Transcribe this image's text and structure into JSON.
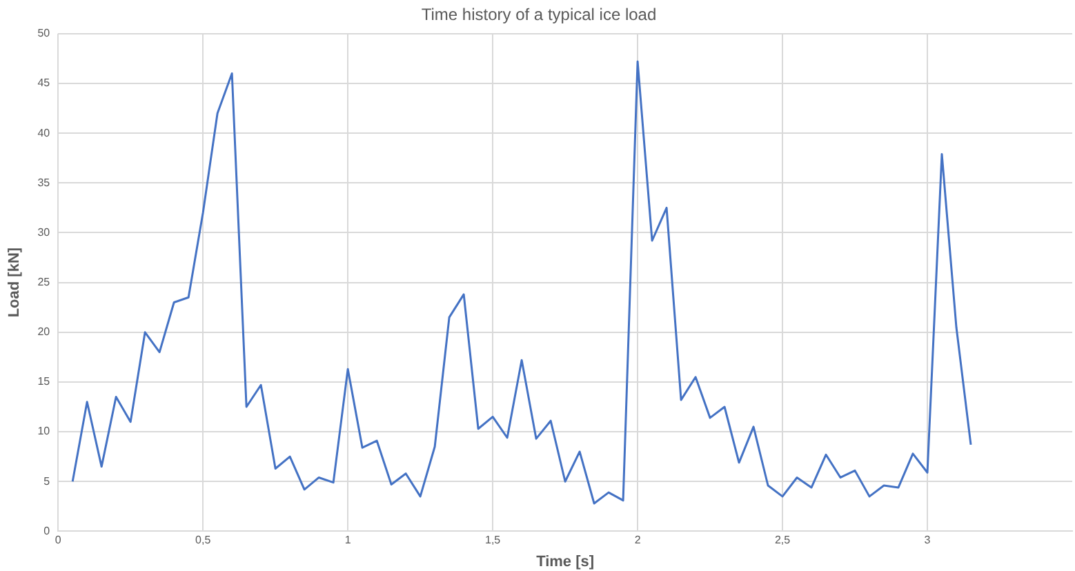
{
  "chart_data": {
    "type": "line",
    "title": "Time history of a typical ice load",
    "xlabel": "Time [s]",
    "ylabel": "Load [kN]",
    "x": [
      0.05,
      0.1,
      0.15,
      0.2,
      0.25,
      0.3,
      0.35,
      0.4,
      0.45,
      0.5,
      0.55,
      0.6,
      0.65,
      0.7,
      0.75,
      0.8,
      0.85,
      0.9,
      0.95,
      1.0,
      1.05,
      1.1,
      1.15,
      1.2,
      1.25,
      1.3,
      1.35,
      1.4,
      1.45,
      1.5,
      1.55,
      1.6,
      1.65,
      1.7,
      1.75,
      1.8,
      1.85,
      1.9,
      1.95,
      2.0,
      2.05,
      2.1,
      2.15,
      2.2,
      2.25,
      2.3,
      2.35,
      2.4,
      2.45,
      2.5,
      2.55,
      2.6,
      2.65,
      2.7,
      2.75,
      2.8,
      2.85,
      2.9,
      2.95,
      3.0,
      3.05,
      3.1,
      3.15
    ],
    "series": [
      {
        "color": "#4472c4",
        "values": [
          5.0,
          13,
          6.5,
          13.5,
          11,
          20,
          18,
          23,
          23.5,
          32,
          42,
          46,
          12.5,
          14.7,
          6.3,
          7.5,
          4.2,
          5.4,
          4.9,
          16.3,
          8.4,
          9.1,
          4.7,
          5.8,
          3.5,
          8.5,
          21.5,
          23.8,
          10.3,
          11.5,
          9.4,
          17.2,
          9.3,
          11.1,
          5.0,
          8.0,
          2.8,
          3.9,
          3.1,
          47.2,
          29.2,
          32.5,
          13.2,
          15.5,
          11.4,
          12.5,
          6.9,
          10.5,
          4.6,
          3.5,
          5.4,
          4.4,
          7.7,
          5.4,
          6.1,
          3.5,
          4.6,
          4.4,
          7.8,
          5.9,
          37.9,
          20.5,
          8.7
        ]
      }
    ],
    "xlim": [
      0,
      3.5
    ],
    "xticks": [
      0,
      {
        "value": 0.5,
        "label": "0,5"
      },
      1,
      {
        "value": 1.5,
        "label": "1,5"
      },
      2,
      {
        "value": 2.5,
        "label": "2,5"
      },
      3
    ],
    "ylim": [
      0,
      50
    ],
    "yticks": [
      0,
      5,
      10,
      15,
      20,
      25,
      30,
      35,
      40,
      45,
      50
    ],
    "grid": true,
    "legend": false,
    "marker": "none",
    "line_style": "solid"
  }
}
